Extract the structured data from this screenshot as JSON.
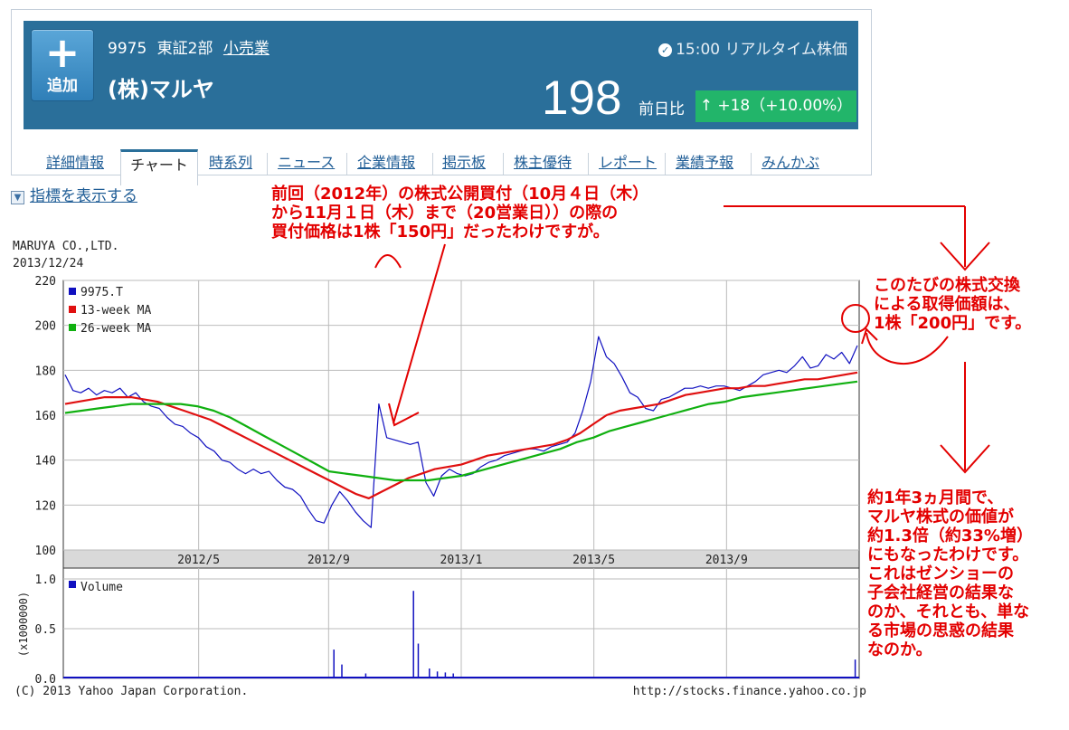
{
  "header": {
    "add_button_plus": "+",
    "add_button_label": "追加",
    "code": "9975",
    "market": "東証2部",
    "sector": "小売業",
    "company": "(株)マルヤ",
    "realtime_text": "15:00 リアルタイム株価",
    "clock_icon": "clock-icon",
    "price": "198",
    "prev_label": "前日比",
    "change": "↑ +18（+10.00%）",
    "banner_color": "#2a6f9a",
    "up_color": "#22b56a"
  },
  "tabs": [
    "詳細情報",
    "チャート",
    "時系列",
    "ニュース",
    "企業情報",
    "掲示板",
    "株主優待",
    "レポート",
    "業績予報",
    "みんかぶ"
  ],
  "active_tab": "チャート",
  "indicator_link": "指標を表示する",
  "chart_header": {
    "company": "MARUYA CO.,LTD.",
    "date": "2013/12/24"
  },
  "chart_data": [
    {
      "type": "line",
      "x_ticks": [
        "2012/5",
        "2012/9",
        "2013/1",
        "2013/5",
        "2013/9"
      ],
      "y_ticks": [
        "220",
        "200",
        "180",
        "160",
        "140",
        "120",
        "100"
      ],
      "ylim": [
        100,
        220
      ],
      "legend_position": "top-left",
      "grid": true,
      "series": [
        {
          "name": "9975.T",
          "color": "#1010c0",
          "values": [
            178,
            171,
            170,
            172,
            169,
            171,
            170,
            172,
            168,
            170,
            166,
            164,
            163,
            159,
            156,
            155,
            152,
            150,
            146,
            144,
            140,
            139,
            136,
            134,
            136,
            134,
            135,
            131,
            128,
            127,
            124,
            118,
            113,
            112,
            120,
            126,
            122,
            117,
            113,
            110,
            165,
            150,
            149,
            148,
            147,
            148,
            130,
            124,
            133,
            136,
            134,
            133,
            134,
            137,
            139,
            140,
            142,
            143,
            144,
            145,
            145,
            144,
            146,
            147,
            148,
            152,
            162,
            175,
            195,
            186,
            183,
            177,
            170,
            168,
            163,
            162,
            167,
            168,
            170,
            172,
            172,
            173,
            172,
            173,
            173,
            172,
            171,
            173,
            175,
            178,
            179,
            180,
            179,
            182,
            186,
            181,
            182,
            187,
            185,
            188,
            183,
            191
          ]
        },
        {
          "name": "13-week MA",
          "color": "#e01010",
          "values": [
            165,
            166,
            167,
            168,
            168,
            168,
            167,
            166,
            164,
            162,
            160,
            158,
            155,
            152,
            149,
            146,
            143,
            140,
            137,
            134,
            131,
            128,
            125,
            123,
            126,
            129,
            132,
            134,
            136,
            137,
            138,
            140,
            142,
            143,
            144,
            145,
            146,
            147,
            149,
            152,
            156,
            160,
            162,
            163,
            164,
            165,
            167,
            169,
            170,
            171,
            172,
            172,
            173,
            173,
            174,
            175,
            176,
            176,
            177,
            178,
            179
          ]
        },
        {
          "name": "26-week MA",
          "color": "#10b010",
          "values": [
            161,
            162,
            163,
            164,
            165,
            165,
            165,
            165,
            164,
            162,
            159,
            155,
            151,
            147,
            143,
            139,
            135,
            134,
            133,
            132,
            131,
            131,
            131,
            132,
            133,
            135,
            137,
            139,
            141,
            143,
            145,
            148,
            150,
            153,
            155,
            157,
            159,
            161,
            163,
            165,
            166,
            168,
            169,
            170,
            171,
            172,
            173,
            174,
            175
          ]
        }
      ]
    },
    {
      "type": "bar",
      "ylabel": "(x1000000)",
      "y_ticks": [
        "1.0",
        "0.5",
        "0.0"
      ],
      "ylim": [
        0,
        1.0
      ],
      "series": [
        {
          "name": "Volume",
          "color": "#1010c0"
        }
      ],
      "spikes": [
        [
          0.34,
          0.29
        ],
        [
          0.35,
          0.14
        ],
        [
          0.44,
          0.88
        ],
        [
          0.446,
          0.35
        ],
        [
          0.46,
          0.1
        ],
        [
          0.47,
          0.07
        ],
        [
          0.48,
          0.06
        ],
        [
          0.49,
          0.05
        ],
        [
          0.38,
          0.05
        ],
        [
          0.995,
          0.19
        ]
      ]
    }
  ],
  "footer": {
    "copyright": "(C) 2013 Yahoo Japan Corporation.",
    "url": "http://stocks.finance.yahoo.co.jp"
  },
  "annotations": {
    "top": [
      "前回（2012年）の株式公開買付（10月４日（木）",
      "から11月１日（木）まで（20営業日））の際の",
      "買付価格は1株「150円」だったわけですが。"
    ],
    "right_top": [
      "このたびの株式交換",
      "による取得価額は、",
      "1株「200円」です。"
    ],
    "right_bottom": [
      "約1年3ヵ月間で、",
      "マルヤ株式の価値が",
      "約1.3倍（約33%増）",
      "にもなったわけです。",
      "これはゼンショーの",
      "子会社経営の結果な",
      "のか、それとも、単な",
      "る市場の思惑の結果",
      "なのか。"
    ],
    "color": "#e30000"
  }
}
